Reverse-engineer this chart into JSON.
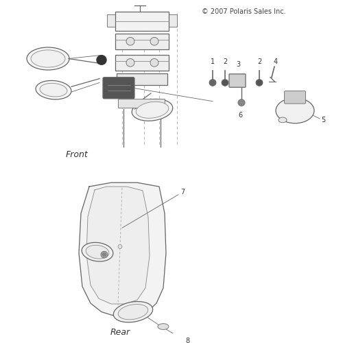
{
  "copyright": "© 2007 Polaris Sales Inc.",
  "front_label": "Front",
  "rear_label": "Rear",
  "bg_color": "#ffffff",
  "line_color": "#aaaaaa",
  "dark_line": "#666666",
  "med_line": "#888888"
}
